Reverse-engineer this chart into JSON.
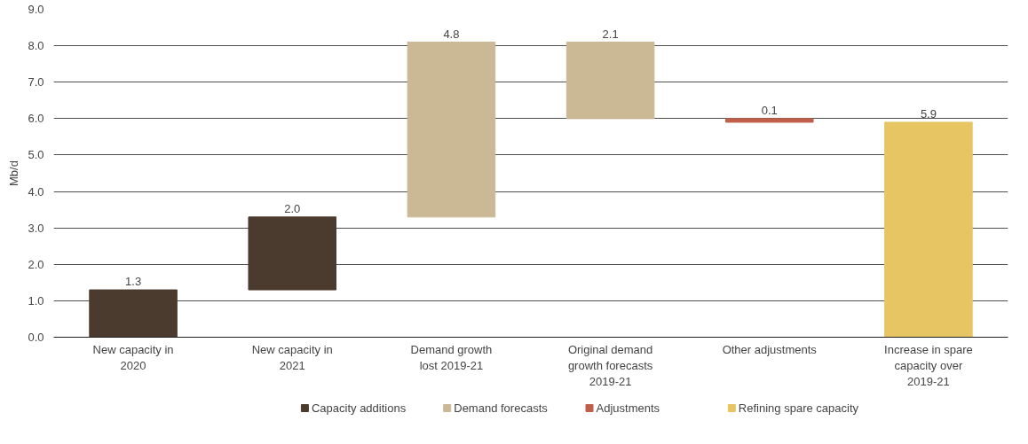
{
  "chart_data": {
    "type": "bar",
    "ylabel": "Mb/d",
    "categories": [
      "New capacity in 2020",
      "New capacity in 2021",
      "Demand growth lost 2019-21",
      "Original demand growth forecasts 2019-21",
      "Other adjustments",
      "Increase in spare capacity over 2019-21"
    ],
    "series": [
      {
        "name": "Capacity additions",
        "color": "#4b3b2f",
        "values": [
          1.3,
          2.0,
          null,
          null,
          null,
          null
        ],
        "value_labels": [
          "1.3",
          "2.0",
          null,
          null,
          null,
          null
        ],
        "base": [
          0.0,
          1.3,
          null,
          null,
          null,
          null
        ]
      },
      {
        "name": "Demand forecasts",
        "color": "#cbb995",
        "values": [
          null,
          null,
          4.8,
          2.1,
          null,
          null
        ],
        "value_labels": [
          null,
          null,
          "4.8",
          "2.1",
          null,
          null
        ],
        "base": [
          null,
          null,
          3.3,
          6.0,
          null,
          null
        ]
      },
      {
        "name": "Adjustments",
        "color": "#c0604a",
        "values": [
          null,
          null,
          null,
          null,
          0.1,
          null
        ],
        "value_labels": [
          null,
          null,
          null,
          null,
          "0.1",
          null
        ],
        "base": [
          null,
          null,
          null,
          null,
          5.9,
          null
        ]
      },
      {
        "name": "Refining spare capacity",
        "color": "#e6c562",
        "values": [
          null,
          null,
          null,
          null,
          null,
          5.9
        ],
        "value_labels": [
          null,
          null,
          null,
          null,
          null,
          "5.9"
        ],
        "base": [
          null,
          null,
          null,
          null,
          null,
          0.0
        ]
      }
    ],
    "ylim": [
      0,
      9
    ],
    "yticks": [
      {
        "value": 0,
        "label": "0.0"
      },
      {
        "value": 1,
        "label": "1.0"
      },
      {
        "value": 2,
        "label": "2.0"
      },
      {
        "value": 3,
        "label": "3.0"
      },
      {
        "value": 4,
        "label": "4.0"
      },
      {
        "value": 5,
        "label": "5.0"
      },
      {
        "value": 6,
        "label": "6.0"
      },
      {
        "value": 7,
        "label": "7.0"
      },
      {
        "value": 8,
        "label": "8.0"
      },
      {
        "value": 9,
        "label": "9.0"
      }
    ],
    "grid": "y",
    "legend": "bottom"
  }
}
